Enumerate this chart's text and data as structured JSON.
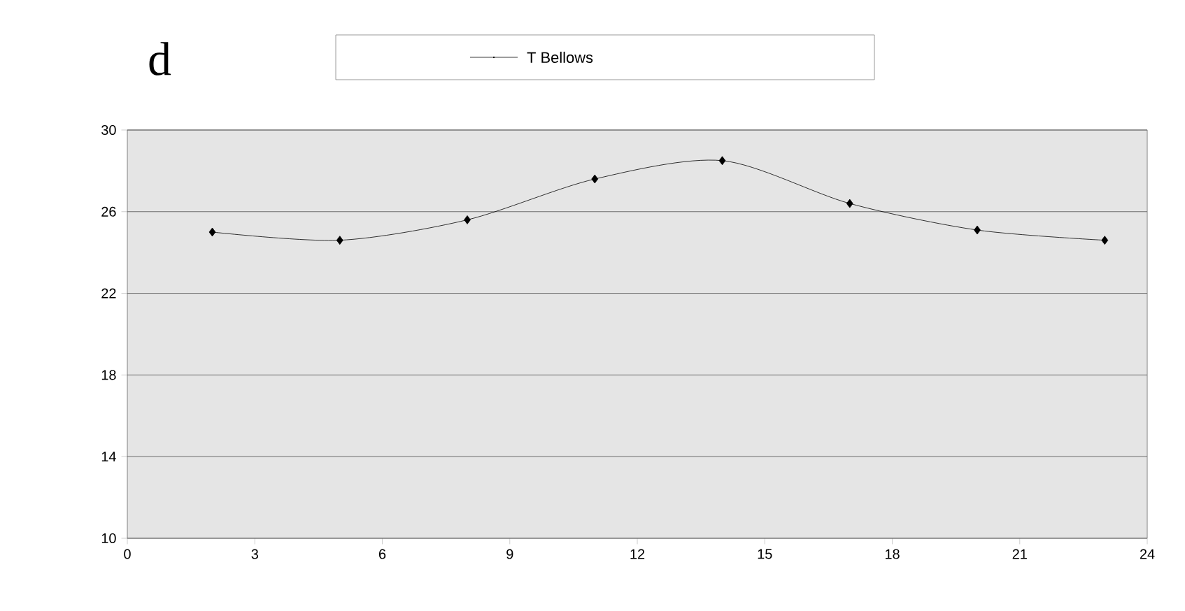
{
  "chart_data": {
    "type": "line",
    "annotations": [
      "d"
    ],
    "x": [
      2,
      5,
      8,
      11,
      14,
      17,
      20,
      23
    ],
    "series": [
      {
        "name": "T  Bellows",
        "color": "#000000",
        "values": [
          25.0,
          24.6,
          25.6,
          27.6,
          28.5,
          26.4,
          25.1,
          24.6
        ]
      }
    ],
    "xlim": [
      0,
      24
    ],
    "ylim": [
      10,
      30
    ],
    "xticks": [
      0,
      3,
      6,
      9,
      12,
      15,
      18,
      21,
      24
    ],
    "yticks": [
      10,
      14,
      18,
      22,
      26,
      30
    ],
    "grid": "y",
    "legend": "top",
    "marker": "diamond",
    "line_style": "solid"
  }
}
